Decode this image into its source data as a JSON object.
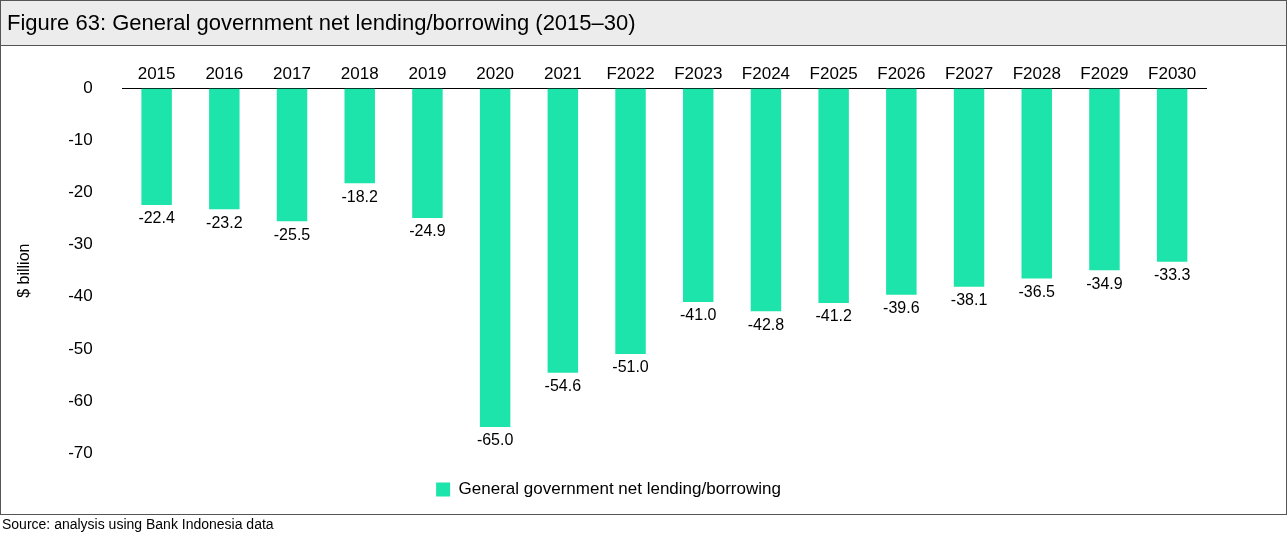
{
  "chart_data": {
    "type": "bar",
    "title": "Figure 63: General government net lending/borrowing (2015–30)",
    "ylabel": "$ billion",
    "categories": [
      "2015",
      "2016",
      "2017",
      "2018",
      "2019",
      "2020",
      "2021",
      "F2022",
      "F2023",
      "F2024",
      "F2025",
      "F2026",
      "F2027",
      "F2028",
      "F2029",
      "F2030"
    ],
    "series": [
      {
        "name": "General government net lending/borrowing",
        "color": "#1de4aa",
        "values": [
          -22.4,
          -23.2,
          -25.5,
          -18.2,
          -24.9,
          -65.0,
          -54.6,
          -51.0,
          -41.0,
          -42.8,
          -41.2,
          -39.6,
          -38.1,
          -36.5,
          -34.9,
          -33.3
        ],
        "value_labels": [
          "-22.4",
          "-23.2",
          "-25.5",
          "-18.2",
          "-24.9",
          "-65.0",
          "-54.6",
          "-51.0",
          "-41.0",
          "-42.8",
          "-41.2",
          "-39.6",
          "-38.1",
          "-36.5",
          "-34.9",
          "-33.3"
        ]
      }
    ],
    "ylim": [
      -70,
      0
    ],
    "yticks": [
      0,
      -10,
      -20,
      -30,
      -40,
      -50,
      -60,
      -70
    ],
    "grid": false,
    "legend": "bottom",
    "annotations": [
      "Source: analysis using Bank Indonesia data"
    ]
  }
}
